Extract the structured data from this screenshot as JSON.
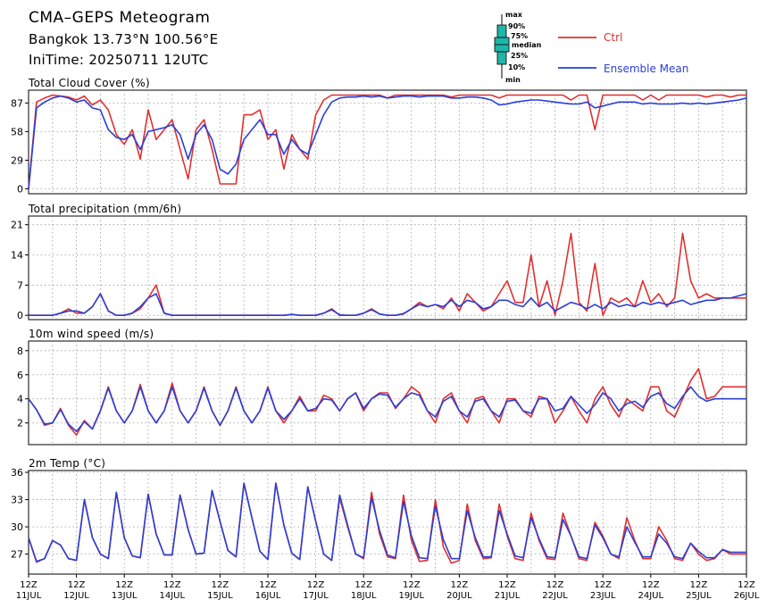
{
  "header": {
    "title": "CMA–GEPS Meteogram",
    "location": "Bangkok 13.73°N 100.56°E",
    "init_time": "IniTime: 20250711 12UTC"
  },
  "legend": {
    "box_labels": [
      "max",
      "90%",
      "75%",
      "median",
      "25%",
      "10%",
      "min"
    ],
    "ctrl_label": "Ctrl",
    "mean_label": "Ensemble Mean",
    "ctrl_color": "#e03030",
    "mean_color": "#2a3fd6",
    "box_color": "#1fb5a8"
  },
  "x_axis": {
    "tick_labels": [
      [
        "12Z",
        "11JUL"
      ],
      [
        "12Z",
        "12JUL"
      ],
      [
        "12Z",
        "13JUL"
      ],
      [
        "12Z",
        "14JUL"
      ],
      [
        "12Z",
        "15JUL"
      ],
      [
        "12Z",
        "16JUL"
      ],
      [
        "12Z",
        "17JUL"
      ],
      [
        "12Z",
        "18JUL"
      ],
      [
        "12Z",
        "19JUL"
      ],
      [
        "12Z",
        "20JUL"
      ],
      [
        "12Z",
        "21JUL"
      ],
      [
        "12Z",
        "22JUL"
      ],
      [
        "12Z",
        "23JUL"
      ],
      [
        "12Z",
        "24JUL"
      ],
      [
        "12Z",
        "25JUL"
      ],
      [
        "12Z",
        "26JUL"
      ]
    ]
  },
  "chart_data": [
    {
      "type": "line",
      "title": "Total Cloud Cover (%)",
      "ylim": [
        -5,
        100
      ],
      "yticks": [
        0,
        29,
        58,
        87
      ],
      "grid": true,
      "x_step_hours": 6,
      "series": [
        {
          "name": "Ctrl",
          "values": [
            0,
            88,
            92,
            95,
            94,
            93,
            90,
            94,
            85,
            90,
            80,
            55,
            45,
            60,
            30,
            80,
            50,
            60,
            70,
            40,
            10,
            60,
            70,
            40,
            5,
            5,
            5,
            75,
            75,
            80,
            50,
            60,
            20,
            55,
            40,
            30,
            75,
            90,
            95,
            95,
            95,
            95,
            95,
            95,
            95,
            92,
            95,
            95,
            95,
            95,
            95,
            95,
            95,
            93,
            95,
            95,
            95,
            95,
            95,
            92,
            95,
            95,
            95,
            95,
            95,
            95,
            95,
            95,
            90,
            95,
            95,
            60,
            95,
            95,
            95,
            95,
            95,
            90,
            95,
            90,
            95,
            95,
            95,
            95,
            95,
            93,
            95,
            95,
            93,
            95,
            95
          ]
        },
        {
          "name": "Ensemble Mean",
          "values": [
            0,
            82,
            88,
            92,
            94,
            92,
            88,
            90,
            82,
            80,
            60,
            52,
            50,
            55,
            40,
            58,
            60,
            62,
            65,
            55,
            30,
            55,
            65,
            50,
            20,
            15,
            25,
            50,
            60,
            70,
            55,
            55,
            35,
            50,
            40,
            35,
            55,
            75,
            88,
            92,
            93,
            93,
            94,
            93,
            94,
            92,
            93,
            94,
            94,
            93,
            94,
            94,
            94,
            92,
            92,
            93,
            93,
            92,
            90,
            85,
            86,
            88,
            89,
            90,
            90,
            89,
            88,
            87,
            86,
            86,
            88,
            82,
            84,
            86,
            88,
            88,
            88,
            86,
            87,
            86,
            86,
            86,
            87,
            86,
            87,
            86,
            87,
            88,
            89,
            90,
            92
          ]
        }
      ]
    },
    {
      "type": "line",
      "title": "Total precipitation (mm/6h)",
      "ylim": [
        -1,
        23
      ],
      "yticks": [
        0,
        7,
        14,
        21
      ],
      "grid": true,
      "x_step_hours": 6,
      "series": [
        {
          "name": "Ctrl",
          "values": [
            0,
            0,
            0,
            0,
            0.5,
            1.5,
            0.5,
            0.5,
            2,
            5,
            1,
            0,
            0,
            0.5,
            1.5,
            4,
            7,
            0.5,
            0,
            0,
            0,
            0,
            0,
            0,
            0,
            0,
            0,
            0,
            0,
            0,
            0,
            0,
            0,
            0.2,
            0,
            0,
            0,
            0.5,
            1.5,
            0,
            0,
            0,
            0.5,
            1.5,
            0.3,
            0,
            0,
            0.3,
            1.5,
            3,
            2,
            2.5,
            1.5,
            4,
            1,
            5,
            3,
            1,
            2,
            5,
            8,
            3,
            3,
            14,
            2,
            8,
            0,
            8,
            19,
            3,
            1,
            12,
            0,
            4,
            3,
            4,
            2,
            8,
            3,
            5,
            2,
            4,
            19,
            8,
            4,
            5,
            4,
            4,
            4,
            4,
            4
          ]
        },
        {
          "name": "Ensemble Mean",
          "values": [
            0,
            0,
            0,
            0,
            0.5,
            1,
            1,
            0.5,
            2,
            5,
            1,
            0,
            0,
            0.5,
            2,
            4,
            5,
            0.5,
            0,
            0,
            0,
            0,
            0,
            0,
            0,
            0,
            0,
            0,
            0,
            0,
            0,
            0,
            0,
            0.2,
            0,
            0,
            0,
            0.5,
            1.3,
            0.1,
            0,
            0,
            0.5,
            1.3,
            0.3,
            0,
            0,
            0.4,
            1.5,
            2.5,
            2,
            2.5,
            2,
            3.5,
            2,
            3.5,
            3,
            1.5,
            2,
            3.5,
            3.5,
            2.5,
            2,
            4,
            2,
            3,
            1,
            2,
            3,
            2.5,
            1.5,
            2.5,
            1.5,
            3,
            2,
            2.5,
            2,
            3,
            2.5,
            3,
            2.5,
            3,
            3.5,
            2.5,
            3,
            3.5,
            3.5,
            4,
            4,
            4.5,
            5
          ]
        }
      ]
    },
    {
      "type": "line",
      "title": "10m wind speed (m/s)",
      "ylim": [
        0.2,
        8.8
      ],
      "yticks": [
        2,
        4,
        6,
        8
      ],
      "grid": true,
      "x_step_hours": 6,
      "series": [
        {
          "name": "Ctrl",
          "values": [
            4,
            3.1,
            1.8,
            2,
            3.2,
            1.8,
            1,
            2.2,
            1.5,
            3,
            5,
            3,
            2,
            3,
            5.2,
            3,
            2,
            3,
            5.3,
            3,
            2,
            3,
            5,
            3,
            1.8,
            3,
            5,
            3,
            2,
            3,
            5,
            3,
            2,
            3,
            4.2,
            3,
            3,
            4.3,
            4,
            3,
            4,
            4.5,
            3,
            4,
            4.5,
            4.5,
            3.2,
            4,
            5,
            4.5,
            3,
            2,
            4,
            4.5,
            3,
            2,
            4,
            4.2,
            3,
            2,
            4,
            4,
            3,
            2.5,
            4.2,
            4,
            2,
            3,
            4.2,
            3,
            2,
            4,
            5,
            3.5,
            2.5,
            4,
            3.5,
            3,
            5,
            5,
            3,
            2.5,
            4,
            5.5,
            6.5,
            4,
            4.2,
            5,
            5,
            5,
            5
          ]
        },
        {
          "name": "Ensemble Mean",
          "values": [
            4,
            3.1,
            1.9,
            2,
            3.1,
            1.9,
            1.3,
            2.1,
            1.5,
            3,
            4.9,
            3,
            2,
            3,
            5,
            3,
            2,
            3,
            5,
            3,
            2,
            3,
            4.9,
            3,
            1.8,
            3,
            4.9,
            3,
            2,
            3,
            4.9,
            3,
            2.3,
            3,
            4,
            3,
            3.2,
            4,
            3.9,
            3,
            4,
            4.5,
            3.2,
            4,
            4.4,
            4.3,
            3.3,
            4,
            4.5,
            4.3,
            3,
            2.5,
            3.8,
            4.2,
            3,
            2.5,
            3.8,
            4,
            3,
            2.5,
            3.8,
            3.9,
            3,
            2.8,
            4,
            4,
            3,
            3.2,
            4.2,
            3.5,
            2.8,
            3.5,
            4.5,
            4,
            3,
            3.6,
            3.8,
            3.3,
            4.2,
            4.5,
            3.6,
            3.2,
            4.2,
            5,
            4.2,
            3.8,
            4,
            4,
            4,
            4,
            4
          ]
        }
      ]
    },
    {
      "type": "line",
      "title": "2m Temp (°C)",
      "ylim": [
        24.8,
        36.2
      ],
      "yticks": [
        27,
        30,
        33,
        36
      ],
      "grid": true,
      "x_step_hours": 6,
      "series": [
        {
          "name": "Ctrl",
          "values": [
            28.8,
            26.1,
            26.5,
            28.5,
            28,
            26.5,
            26.3,
            33,
            28.8,
            27,
            26.5,
            33.8,
            28.8,
            26.8,
            26.6,
            33.6,
            29.2,
            26.9,
            26.9,
            33.5,
            29.7,
            27,
            27.1,
            34,
            30.6,
            27.4,
            26.7,
            34.8,
            31,
            27.3,
            26.4,
            34.8,
            30.2,
            27.1,
            26.4,
            34.4,
            30.6,
            27,
            26.3,
            33.2,
            30,
            27,
            26.5,
            33.8,
            29.2,
            26.7,
            26.5,
            33.5,
            28.5,
            26.2,
            26.3,
            33,
            27.8,
            26,
            26.3,
            32.5,
            28.5,
            26.5,
            26.6,
            32.5,
            29,
            26.5,
            26.3,
            31.5,
            28.5,
            26.5,
            26.4,
            31.5,
            29,
            26.5,
            26.3,
            30.5,
            29,
            27,
            26.5,
            31,
            28.5,
            26.5,
            26.5,
            30,
            28.5,
            26.5,
            26.3,
            28.2,
            27,
            26.3,
            26.5,
            27.5,
            27,
            27,
            27
          ]
        },
        {
          "name": "Ensemble Mean",
          "values": [
            28.8,
            26.2,
            26.5,
            28.5,
            28,
            26.5,
            26.3,
            33,
            28.8,
            27,
            26.5,
            33.8,
            28.8,
            26.8,
            26.6,
            33.6,
            29.2,
            26.9,
            26.9,
            33.5,
            29.7,
            27,
            27.1,
            34,
            30.6,
            27.4,
            26.7,
            34.8,
            31,
            27.3,
            26.4,
            34.8,
            30.2,
            27.1,
            26.4,
            34.4,
            30.6,
            27,
            26.3,
            33.5,
            30.2,
            27,
            26.6,
            33.2,
            29.6,
            26.9,
            26.6,
            32.8,
            29,
            26.6,
            26.5,
            32.3,
            28.6,
            26.5,
            26.5,
            31.8,
            28.8,
            26.7,
            26.7,
            31.8,
            29.2,
            26.8,
            26.6,
            31,
            28.7,
            26.7,
            26.6,
            30.8,
            29,
            26.7,
            26.5,
            30.2,
            28.8,
            27,
            26.7,
            30,
            28.3,
            26.7,
            26.7,
            29.2,
            28.2,
            26.7,
            26.5,
            28.2,
            27.3,
            26.6,
            26.6,
            27.5,
            27.2,
            27.2,
            27.2
          ]
        }
      ]
    }
  ]
}
